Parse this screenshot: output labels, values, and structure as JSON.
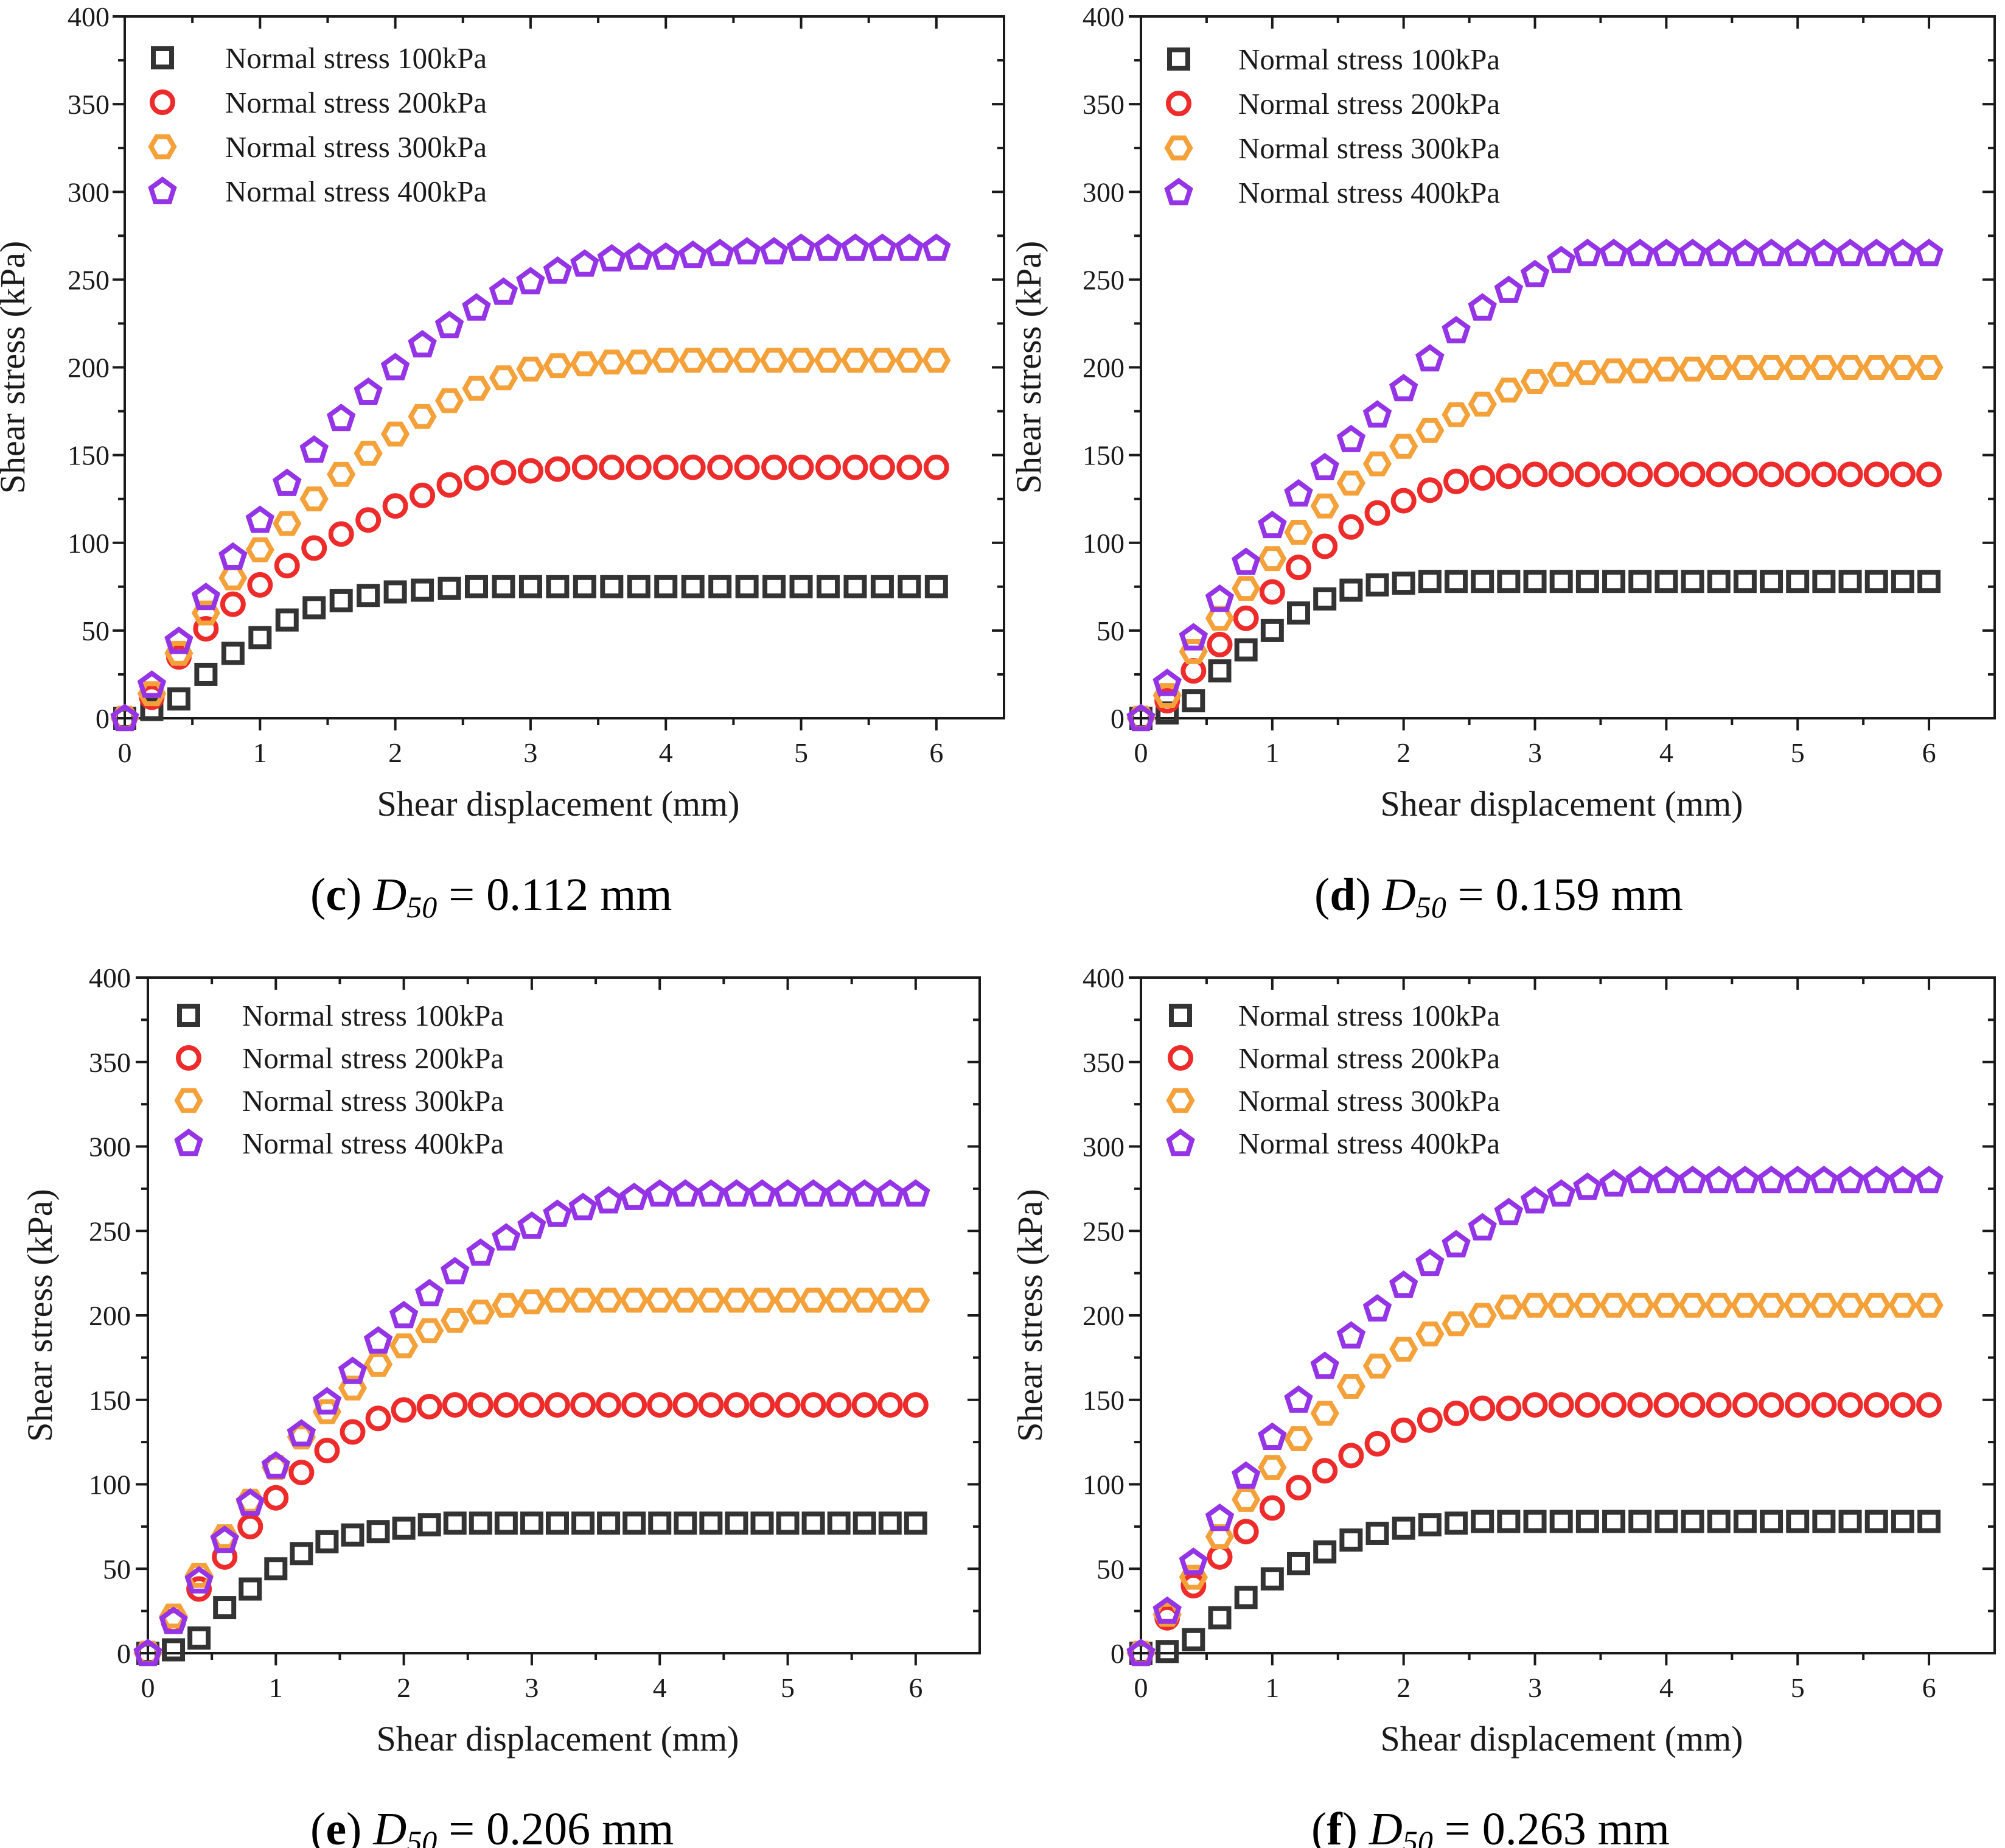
{
  "figure": {
    "colors": {
      "s100": "#333333",
      "s200": "#ee2b2b",
      "s300": "#f5a13a",
      "s400": "#9434e6",
      "axis": "#1a1a1a"
    },
    "markers": {
      "s100": "square",
      "s200": "circle",
      "s300": "hexagon",
      "s400": "pentagon"
    }
  },
  "chart_data": [
    {
      "id": "c",
      "type": "scatter",
      "caption": {
        "letter": "c",
        "open": "(",
        "close": ")",
        "var": "D",
        "sub": "50",
        "value": " = 0.112 mm"
      },
      "xlabel": "Shear displacement (mm)",
      "ylabel": "Shear stress (kPa)",
      "xlim": [
        0,
        6.5
      ],
      "ylim": [
        0,
        400
      ],
      "xticks": [
        0,
        1,
        2,
        3,
        4,
        5,
        6
      ],
      "yticks": [
        0,
        50,
        100,
        150,
        200,
        250,
        300,
        350,
        400
      ],
      "legend_position": "top-left",
      "x": [
        0,
        0.2,
        0.4,
        0.6,
        0.8,
        1.0,
        1.2,
        1.4,
        1.6,
        1.8,
        2.0,
        2.2,
        2.4,
        2.6,
        2.8,
        3.0,
        3.2,
        3.4,
        3.6,
        3.8,
        4.0,
        4.2,
        4.4,
        4.6,
        4.8,
        5.0,
        5.2,
        5.4,
        5.6,
        5.8,
        6.0
      ],
      "series": [
        {
          "key": "s100",
          "name": "Normal stress 100kPa",
          "values": [
            0,
            5,
            11,
            25,
            37,
            46,
            56,
            63,
            67,
            70,
            72,
            73,
            74,
            75,
            75,
            75,
            75,
            75,
            75,
            75,
            75,
            75,
            75,
            75,
            75,
            75,
            75,
            75,
            75,
            75,
            75
          ]
        },
        {
          "key": "s200",
          "name": "Normal stress 200kPa",
          "values": [
            0,
            12,
            35,
            51,
            65,
            76,
            87,
            97,
            105,
            113,
            121,
            127,
            133,
            137,
            140,
            141,
            142,
            143,
            143,
            143,
            143,
            143,
            143,
            143,
            143,
            143,
            143,
            143,
            143,
            143,
            143
          ]
        },
        {
          "key": "s300",
          "name": "Normal stress 300kPa",
          "values": [
            0,
            14,
            37,
            60,
            80,
            96,
            111,
            125,
            139,
            151,
            162,
            172,
            181,
            188,
            194,
            199,
            201,
            202,
            203,
            203,
            204,
            204,
            204,
            204,
            204,
            204,
            204,
            204,
            204,
            204,
            204
          ]
        },
        {
          "key": "s400",
          "name": "Normal stress 400kPa",
          "values": [
            0,
            19,
            44,
            69,
            92,
            113,
            134,
            153,
            171,
            186,
            200,
            213,
            224,
            234,
            243,
            249,
            255,
            259,
            262,
            263,
            263,
            264,
            265,
            266,
            266,
            268,
            268,
            268,
            268,
            268,
            268
          ]
        }
      ]
    },
    {
      "id": "d",
      "type": "scatter",
      "caption": {
        "letter": "d",
        "open": "(",
        "close": ")",
        "var": "D",
        "sub": "50",
        "value": " = 0.159 mm"
      },
      "xlabel": "Shear displacement (mm)",
      "ylabel": "Shear stress (kPa)",
      "xlim": [
        0,
        6.5
      ],
      "ylim": [
        0,
        400
      ],
      "xticks": [
        0,
        1,
        2,
        3,
        4,
        5,
        6
      ],
      "yticks": [
        0,
        50,
        100,
        150,
        200,
        250,
        300,
        350,
        400
      ],
      "legend_position": "top-left",
      "x": [
        0,
        0.2,
        0.4,
        0.6,
        0.8,
        1.0,
        1.2,
        1.4,
        1.6,
        1.8,
        2.0,
        2.2,
        2.4,
        2.6,
        2.8,
        3.0,
        3.2,
        3.4,
        3.6,
        3.8,
        4.0,
        4.2,
        4.4,
        4.6,
        4.8,
        5.0,
        5.2,
        5.4,
        5.6,
        5.8,
        6.0
      ],
      "series": [
        {
          "key": "s100",
          "name": "Normal stress 100kPa",
          "values": [
            0,
            3,
            10,
            27,
            39,
            50,
            60,
            68,
            73,
            76,
            77,
            78,
            78,
            78,
            78,
            78,
            78,
            78,
            78,
            78,
            78,
            78,
            78,
            78,
            78,
            78,
            78,
            78,
            78,
            78,
            78
          ]
        },
        {
          "key": "s200",
          "name": "Normal stress 200kPa",
          "values": [
            0,
            10,
            27,
            42,
            57,
            72,
            86,
            98,
            109,
            117,
            124,
            130,
            135,
            137,
            138,
            139,
            139,
            139,
            139,
            139,
            139,
            139,
            139,
            139,
            139,
            139,
            139,
            139,
            139,
            139,
            139
          ]
        },
        {
          "key": "s300",
          "name": "Normal stress 300kPa",
          "values": [
            0,
            13,
            38,
            57,
            74,
            91,
            106,
            121,
            134,
            145,
            155,
            164,
            173,
            179,
            187,
            192,
            196,
            197,
            198,
            198,
            199,
            199,
            200,
            200,
            200,
            200,
            200,
            200,
            200,
            200,
            200
          ]
        },
        {
          "key": "s400",
          "name": "Normal stress 400kPa",
          "values": [
            0,
            20,
            46,
            68,
            89,
            110,
            128,
            143,
            159,
            173,
            188,
            205,
            221,
            234,
            244,
            253,
            261,
            265,
            265,
            265,
            265,
            265,
            265,
            265,
            265,
            265,
            265,
            265,
            265,
            265,
            265
          ]
        }
      ]
    },
    {
      "id": "e",
      "type": "scatter",
      "caption": {
        "letter": "e",
        "open": "(",
        "close": ")",
        "var": "D",
        "sub": "50",
        "value": " = 0.206 mm"
      },
      "xlabel": "Shear displacement (mm)",
      "ylabel": "Shear stress (kPa)",
      "xlim": [
        0,
        6.5
      ],
      "ylim": [
        0,
        400
      ],
      "xticks": [
        0,
        1,
        2,
        3,
        4,
        5,
        6
      ],
      "yticks": [
        0,
        50,
        100,
        150,
        200,
        250,
        300,
        350,
        400
      ],
      "legend_position": "top-left",
      "x": [
        0,
        0.2,
        0.4,
        0.6,
        0.8,
        1.0,
        1.2,
        1.4,
        1.6,
        1.8,
        2.0,
        2.2,
        2.4,
        2.6,
        2.8,
        3.0,
        3.2,
        3.4,
        3.6,
        3.8,
        4.0,
        4.2,
        4.4,
        4.6,
        4.8,
        5.0,
        5.2,
        5.4,
        5.6,
        5.8,
        6.0
      ],
      "series": [
        {
          "key": "s100",
          "name": "Normal stress 100kPa",
          "values": [
            0,
            2,
            9,
            27,
            38,
            50,
            59,
            66,
            70,
            72,
            74,
            76,
            77,
            77,
            77,
            77,
            77,
            77,
            77,
            77,
            77,
            77,
            77,
            77,
            77,
            77,
            77,
            77,
            77,
            77,
            77
          ]
        },
        {
          "key": "s200",
          "name": "Normal stress 200kPa",
          "values": [
            0,
            19,
            38,
            57,
            75,
            92,
            107,
            120,
            131,
            139,
            144,
            146,
            147,
            147,
            147,
            147,
            147,
            147,
            147,
            147,
            147,
            147,
            147,
            147,
            147,
            147,
            147,
            147,
            147,
            147,
            147
          ]
        },
        {
          "key": "s300",
          "name": "Normal stress 300kPa",
          "values": [
            0,
            22,
            46,
            69,
            90,
            110,
            128,
            143,
            157,
            171,
            182,
            191,
            197,
            202,
            206,
            208,
            209,
            209,
            209,
            209,
            209,
            209,
            209,
            209,
            209,
            209,
            209,
            209,
            209,
            209,
            209
          ]
        },
        {
          "key": "s400",
          "name": "Normal stress 400kPa",
          "values": [
            0,
            19,
            43,
            67,
            89,
            111,
            130,
            149,
            167,
            185,
            200,
            213,
            226,
            237,
            246,
            253,
            260,
            264,
            268,
            270,
            272,
            272,
            272,
            272,
            272,
            272,
            272,
            272,
            272,
            272,
            272
          ]
        }
      ]
    },
    {
      "id": "f",
      "type": "scatter",
      "caption": {
        "letter": "f",
        "open": "(",
        "close": ")",
        "var": "D",
        "sub": "50",
        "value": " = 0.263 mm"
      },
      "xlabel": "Shear displacement (mm)",
      "ylabel": "Shear stress (kPa)",
      "xlim": [
        0,
        6.5
      ],
      "ylim": [
        0,
        400
      ],
      "xticks": [
        0,
        1,
        2,
        3,
        4,
        5,
        6
      ],
      "yticks": [
        0,
        50,
        100,
        150,
        200,
        250,
        300,
        350,
        400
      ],
      "legend_position": "top-left",
      "x": [
        0,
        0.2,
        0.4,
        0.6,
        0.8,
        1.0,
        1.2,
        1.4,
        1.6,
        1.8,
        2.0,
        2.2,
        2.4,
        2.6,
        2.8,
        3.0,
        3.2,
        3.4,
        3.6,
        3.8,
        4.0,
        4.2,
        4.4,
        4.6,
        4.8,
        5.0,
        5.2,
        5.4,
        5.6,
        5.8,
        6.0
      ],
      "series": [
        {
          "key": "s100",
          "name": "Normal stress 100kPa",
          "values": [
            0,
            1,
            8,
            21,
            33,
            44,
            53,
            60,
            67,
            71,
            74,
            76,
            77,
            78,
            78,
            78,
            78,
            78,
            78,
            78,
            78,
            78,
            78,
            78,
            78,
            78,
            78,
            78,
            78,
            78,
            78
          ]
        },
        {
          "key": "s200",
          "name": "Normal stress 200kPa",
          "values": [
            0,
            21,
            40,
            57,
            72,
            86,
            98,
            108,
            117,
            124,
            132,
            138,
            142,
            145,
            145,
            147,
            147,
            147,
            147,
            147,
            147,
            147,
            147,
            147,
            147,
            147,
            147,
            147,
            147,
            147,
            147
          ]
        },
        {
          "key": "s300",
          "name": "Normal stress 300kPa",
          "values": [
            0,
            23,
            45,
            69,
            91,
            110,
            127,
            142,
            158,
            170,
            180,
            189,
            195,
            200,
            205,
            206,
            206,
            206,
            206,
            206,
            206,
            206,
            206,
            206,
            206,
            206,
            206,
            206,
            206,
            206,
            206
          ]
        },
        {
          "key": "s400",
          "name": "Normal stress 400kPa",
          "values": [
            0,
            25,
            54,
            80,
            105,
            128,
            150,
            170,
            188,
            204,
            218,
            231,
            242,
            252,
            261,
            268,
            272,
            276,
            278,
            280,
            280,
            280,
            280,
            280,
            280,
            280,
            280,
            280,
            280,
            280,
            280
          ]
        }
      ]
    }
  ]
}
